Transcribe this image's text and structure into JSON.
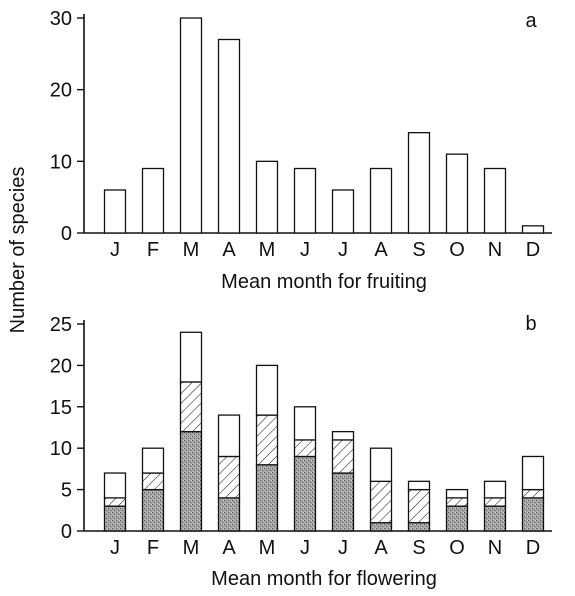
{
  "figure": {
    "shared_ylabel": "Number of species"
  },
  "chart_data": [
    {
      "type": "bar",
      "panel_label": "a",
      "xlabel": "Mean month for fruiting",
      "ylabel": "Number of species",
      "categories": [
        "J",
        "F",
        "M",
        "A",
        "M",
        "J",
        "J",
        "A",
        "S",
        "O",
        "N",
        "D"
      ],
      "values": [
        6,
        9,
        30,
        27,
        10,
        9,
        6,
        9,
        14,
        11,
        9,
        1
      ],
      "ylim": [
        0,
        30
      ],
      "yticks": [
        0,
        10,
        20,
        30
      ],
      "grid": false,
      "fill": "#ffffff",
      "stroke": "#111111"
    },
    {
      "type": "bar",
      "stacked": true,
      "panel_label": "b",
      "xlabel": "Mean month for flowering",
      "ylabel": "Number of species",
      "categories": [
        "J",
        "F",
        "M",
        "A",
        "M",
        "J",
        "J",
        "A",
        "S",
        "O",
        "N",
        "D"
      ],
      "series": [
        {
          "pattern": "stippled",
          "values": [
            3,
            5,
            12,
            4,
            8,
            9,
            7,
            1,
            1,
            3,
            3,
            4
          ]
        },
        {
          "pattern": "hatched",
          "values": [
            1,
            2,
            6,
            5,
            6,
            2,
            4,
            5,
            4,
            1,
            1,
            1
          ]
        },
        {
          "pattern": "open",
          "values": [
            3,
            3,
            6,
            5,
            6,
            4,
            1,
            4,
            1,
            1,
            2,
            4
          ]
        }
      ],
      "totals": [
        7,
        10,
        24,
        14,
        20,
        15,
        12,
        10,
        6,
        5,
        6,
        9
      ],
      "ylim": [
        0,
        25
      ],
      "yticks": [
        0,
        5,
        10,
        15,
        20,
        25
      ],
      "grid": false,
      "colors": {
        "stippled": "#9a9a9a",
        "hatched": "#ffffff",
        "open": "#ffffff",
        "stroke": "#111111"
      }
    }
  ]
}
